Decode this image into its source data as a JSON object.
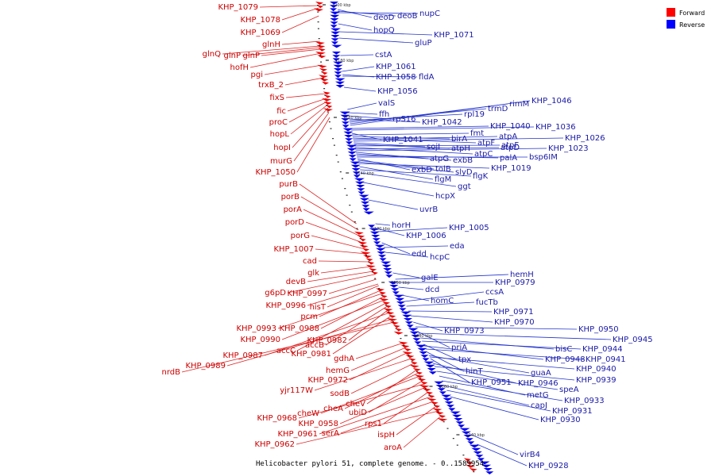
{
  "caption": "Helicobacter pylori 51, complete genome. - 0..1589954",
  "legend": [
    {
      "label": "Forward",
      "color": "#ff0000"
    },
    {
      "label": "Reverse",
      "color": "#0000ff"
    }
  ],
  "kbp_marks": [
    "1200 kbp",
    "1180 kbp",
    "1160 kbp",
    "1140 kbp",
    "1120 kbp",
    "1100 kbp",
    "1080 kbp",
    "1060 kbp",
    "1040 kbp"
  ],
  "forward_labels": [
    "KHP_1079",
    "KHP_1078",
    "KHP_1069",
    "glnH",
    "glnQ",
    "glnP",
    "glnP",
    "hofH",
    "pgi",
    "trxB_2",
    "fixS",
    "fic",
    "proC",
    "hopL",
    "hopI",
    "murG",
    "KHP_1050",
    "purB",
    "porB",
    "porA",
    "porD",
    "porG",
    "KHP_1007",
    "cad",
    "glk",
    "devB",
    "g6pD",
    "KHP_0997",
    "KHP_0996",
    "hisT",
    "pcm",
    "KHP_0993",
    "KHP_0988",
    "KHP_0990",
    "accC",
    "accB",
    "KHP_0982",
    "KHP_0987",
    "KHP_0981",
    "KHP_0989",
    "nrdB",
    "gdhA",
    "hemG",
    "KHP_0972",
    "yjr117W",
    "sodB",
    "cheV",
    "cheA",
    "cheW",
    "ubiD",
    "KHP_0968",
    "KHP_0958",
    "rps1",
    "KHP_0961",
    "serA",
    "ispH",
    "KHP_0962",
    "aroA"
  ],
  "reverse_labels": [
    "deoD",
    "deoB",
    "nupC",
    "hopQ",
    "KHP_1071",
    "gluP",
    "cstA",
    "KHP_1061",
    "KHP_1058",
    "fldA",
    "KHP_1056",
    "valS",
    "ffh",
    "rpS16",
    "KHP_1042",
    "rpl19",
    "trmD",
    "rimM",
    "KHP_1046",
    "KHP_1040",
    "KHP_1036",
    "KHP_1041",
    "fmt",
    "birA",
    "atpF",
    "atpA",
    "KHP_1026",
    "sojI",
    "atpH",
    "atpF",
    "atpC",
    "atpD",
    "KHP_1023",
    "atpG",
    "exbB",
    "palA",
    "bsp6IM",
    "exbD",
    "tolB",
    "slyD",
    "KHP_1019",
    "flgM",
    "flgK",
    "ggt",
    "hcpX",
    "uvrB",
    "horH",
    "KHP_1006",
    "KHP_1005",
    "edd",
    "eda",
    "hcpC",
    "galE",
    "hemH",
    "KHP_0979",
    "dcd",
    "homC",
    "ccsA",
    "fucTb",
    "KHP_0971",
    "KHP_0970",
    "KHP_0973",
    "KHP_0950",
    "priA",
    "KHP_0945",
    "bisC",
    "KHP_0944",
    "tpx",
    "KHP_0948",
    "KHP_0941",
    "hinT",
    "guaA",
    "KHP_0940",
    "KHP_0951",
    "KHP_0946",
    "KHP_0939",
    "speA",
    "metG",
    "KHP_0933",
    "capJ",
    "KHP_0931",
    "KHP_0930",
    "virB4",
    "KHP_0928"
  ]
}
